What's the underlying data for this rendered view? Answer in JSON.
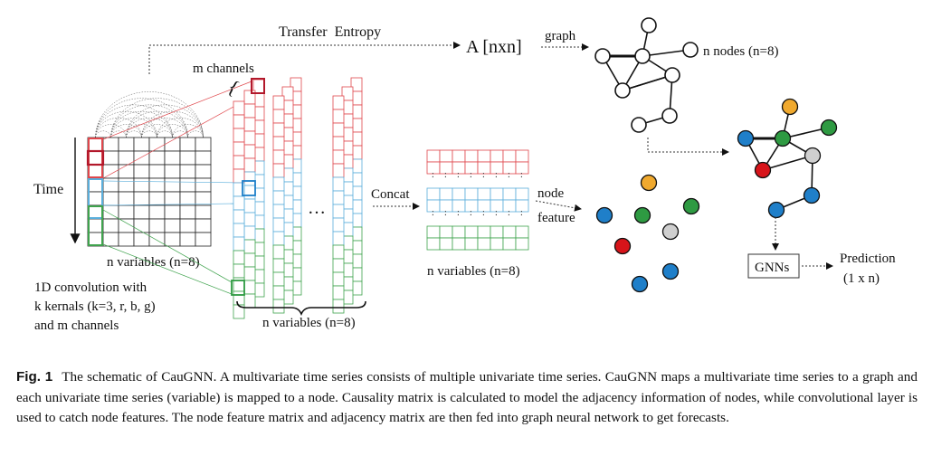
{
  "diagram": {
    "transfer_entropy": "Transfer  Entropy",
    "adjacency_matrix": "A [nxn]",
    "graph_arrow_label": "graph",
    "n_nodes": "n nodes (n=8)",
    "m_channels": "m channels",
    "time_label": "Time",
    "input_n_variables": "n variables (n=8)",
    "conv_desc": [
      "1D convolution with",
      "k kernals (k=3, r, b, g)",
      "and m channels"
    ],
    "ellipsis": "…",
    "channels_n_variables": "n variables (n=8)",
    "concat": "Concat",
    "feature_n_variables": "n variables (n=8)",
    "node_feature": [
      "node",
      "feature"
    ],
    "gnns": "GNNs",
    "prediction": [
      "Prediction",
      "(1 x n)"
    ],
    "colors": {
      "red": "#e0474c",
      "blue": "#5aaedb",
      "green": "#3fa34d",
      "node_blue": "#1f7fc9",
      "node_green": "#2e9a42",
      "node_red": "#d7141a",
      "node_orange": "#f0a92e",
      "node_gray": "#cfcfcf"
    }
  },
  "caption": {
    "label": "Fig. 1",
    "text": "The schematic of CauGNN. A multivariate time series consists of multiple univariate time series. CauGNN maps a multivariate time series to a graph and each univariate time series (variable) is mapped to a node. Causality matrix is calculated to model the adjacency information of nodes, while convolutional layer is used to catch node features. The node feature matrix and adjacency matrix are then fed into graph neural network to get forecasts."
  }
}
